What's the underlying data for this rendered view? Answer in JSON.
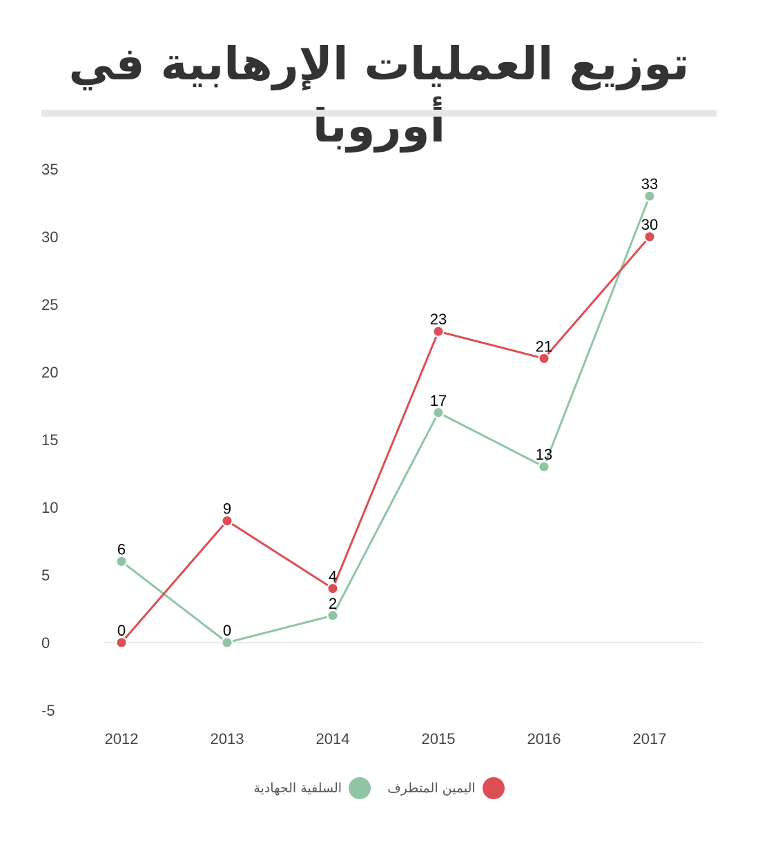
{
  "chart_data": {
    "type": "line",
    "title": "توزيع العمليات الإرهابية في أوروبا",
    "categories": [
      "2012",
      "2013",
      "2014",
      "2015",
      "2016",
      "2017"
    ],
    "series": [
      {
        "name": "السلفية الجهادية",
        "color": "#8fc5a4",
        "values": [
          6,
          0,
          2,
          17,
          13,
          33
        ],
        "labels": [
          "6",
          "0",
          "2",
          "17",
          "13",
          "33"
        ]
      },
      {
        "name": "اليمين المتطرف",
        "color": "#dc4e53",
        "values": [
          0,
          9,
          4,
          23,
          21,
          30
        ],
        "labels": [
          "0",
          "9",
          "4",
          "23",
          "21",
          "30"
        ]
      }
    ],
    "ylim": [
      -5,
      35
    ],
    "yticks": [
      "35",
      "30",
      "25",
      "20",
      "15",
      "10",
      "5",
      "0",
      "-5"
    ],
    "legend_position": "bottom",
    "grid": false
  }
}
